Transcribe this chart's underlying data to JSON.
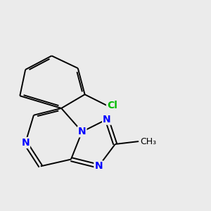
{
  "bg_color": "#ebebeb",
  "bond_color": "#000000",
  "nitrogen_color": "#0000ff",
  "chlorine_color": "#00bb00",
  "font_size_N": 10,
  "font_size_Cl": 10,
  "font_size_me": 9,
  "line_width": 1.4,
  "xlim": [
    1.5,
    8.5
  ],
  "ylim": [
    1.0,
    8.5
  ]
}
